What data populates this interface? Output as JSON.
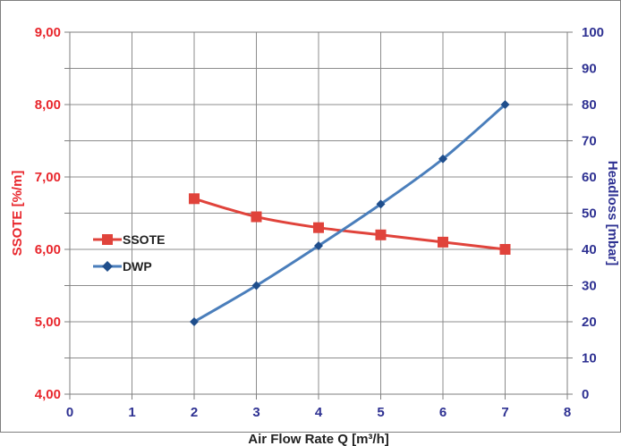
{
  "chart_data": {
    "type": "line",
    "xlabel": "Air Flow Rate Q [m³/h]",
    "ylabel_left": "SSOTE [%/m]",
    "ylabel_right": "Headloss [mbar]",
    "xlim": [
      0,
      8
    ],
    "ylim_left": [
      4,
      9
    ],
    "ylim_right": [
      0,
      100
    ],
    "grid": true,
    "legend_position": "left",
    "x_ticks": [
      "0",
      "1",
      "2",
      "3",
      "4",
      "5",
      "6",
      "7",
      "8"
    ],
    "y_left_ticks": [
      "4,00",
      "5,00",
      "6,00",
      "7,00",
      "8,00",
      "9,00"
    ],
    "y_right_ticks": [
      "0",
      "10",
      "20",
      "30",
      "40",
      "50",
      "60",
      "70",
      "80",
      "90",
      "100"
    ],
    "colors": {
      "left_axis": "#e8262c",
      "right_axis": "#2e3192",
      "ssote": "#e0433b",
      "dwp": "#4a7ebb"
    },
    "series": [
      {
        "name": "SSOTE",
        "axis": "left",
        "marker": "square",
        "x": [
          2,
          3,
          4,
          5,
          6,
          7
        ],
        "values": [
          6.7,
          6.45,
          6.3,
          6.2,
          6.1,
          6.0
        ]
      },
      {
        "name": "DWP",
        "axis": "right",
        "marker": "diamond",
        "x": [
          2,
          3,
          4,
          5,
          6,
          7
        ],
        "values": [
          20,
          30,
          41,
          52.5,
          65,
          80
        ]
      }
    ]
  }
}
